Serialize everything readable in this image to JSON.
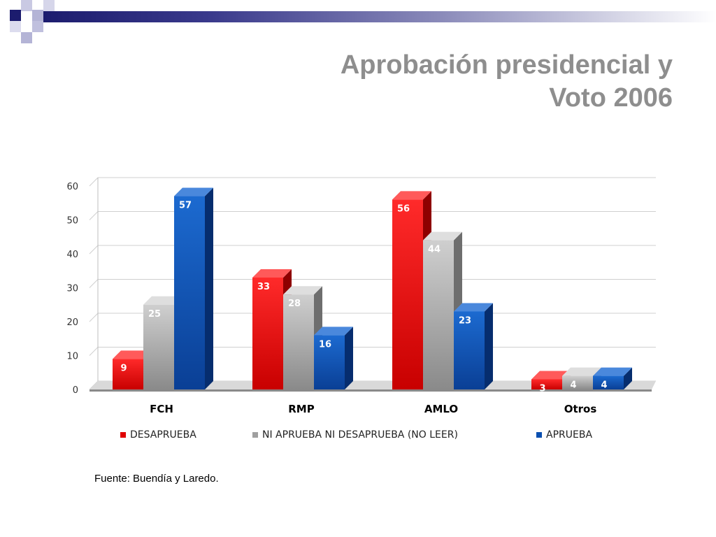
{
  "slide": {
    "title_line1": "Aprobación presidencial y",
    "title_line2": "Voto 2006",
    "source": "Fuente: Buendía y Laredo."
  },
  "colors": {
    "desaprueba": "#e00000",
    "ni": "#9a9a9a",
    "aprueba": "#0a4fb0",
    "title": "#8e8e8e",
    "gridline": "#c8c8c8"
  },
  "chart_data": {
    "type": "bar",
    "title": "",
    "xlabel": "",
    "ylabel": "",
    "ylim": [
      0,
      60
    ],
    "yticks": [
      0,
      10,
      20,
      30,
      40,
      50,
      60
    ],
    "grid": true,
    "legend_position": "bottom",
    "categories": [
      "FCH",
      "RMP",
      "AMLO",
      "Otros"
    ],
    "series": [
      {
        "name": "DESAPRUEBA",
        "values": [
          9,
          33,
          56,
          3
        ]
      },
      {
        "name": "NI APRUEBA NI DESAPRUEBA (NO LEER)",
        "values": [
          25,
          28,
          44,
          4
        ]
      },
      {
        "name": "APRUEBA",
        "values": [
          57,
          16,
          23,
          4
        ]
      }
    ]
  }
}
